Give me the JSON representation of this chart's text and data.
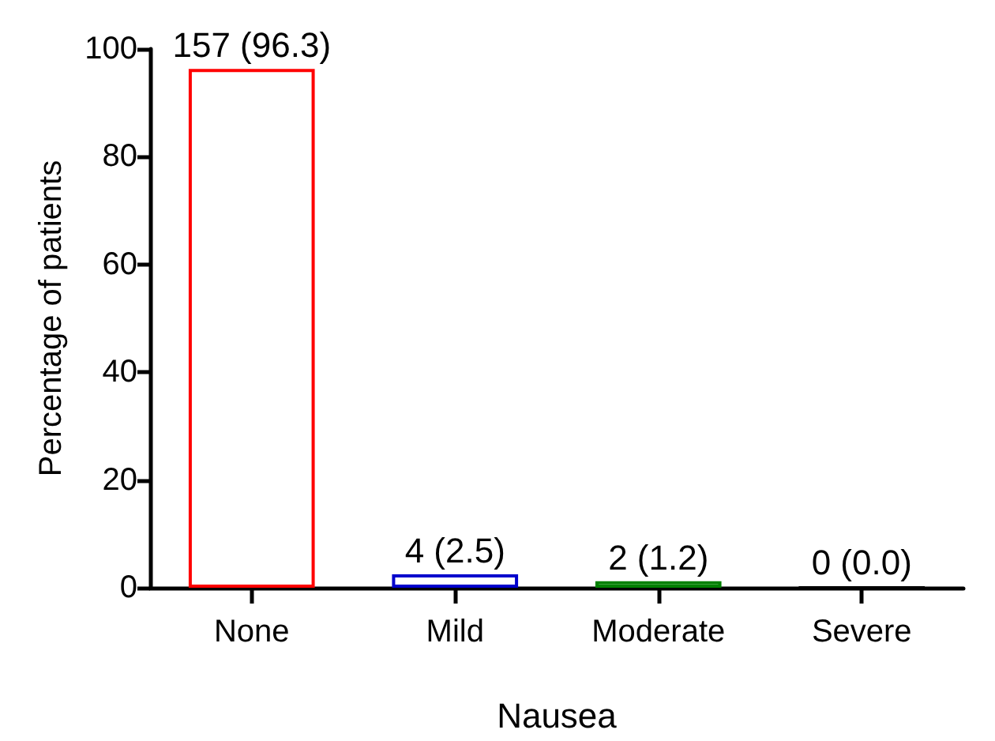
{
  "chart_data": {
    "type": "bar",
    "xlabel": "Nausea",
    "ylabel": "Percentage of patients",
    "categories": [
      "None",
      "Mild",
      "Moderate",
      "Severe"
    ],
    "values": [
      96.3,
      2.5,
      1.2,
      0
    ],
    "colors": [
      "#ff0000",
      "#0000cc",
      "#008000",
      "#000000"
    ],
    "value_labels": [
      "157 (96.3)",
      "4 (2.5)",
      "2 (1.2)",
      "0 (0.0)"
    ],
    "ylim": [
      0,
      100
    ],
    "yticks": [
      0,
      20,
      40,
      60,
      80,
      100
    ],
    "grid": false
  }
}
